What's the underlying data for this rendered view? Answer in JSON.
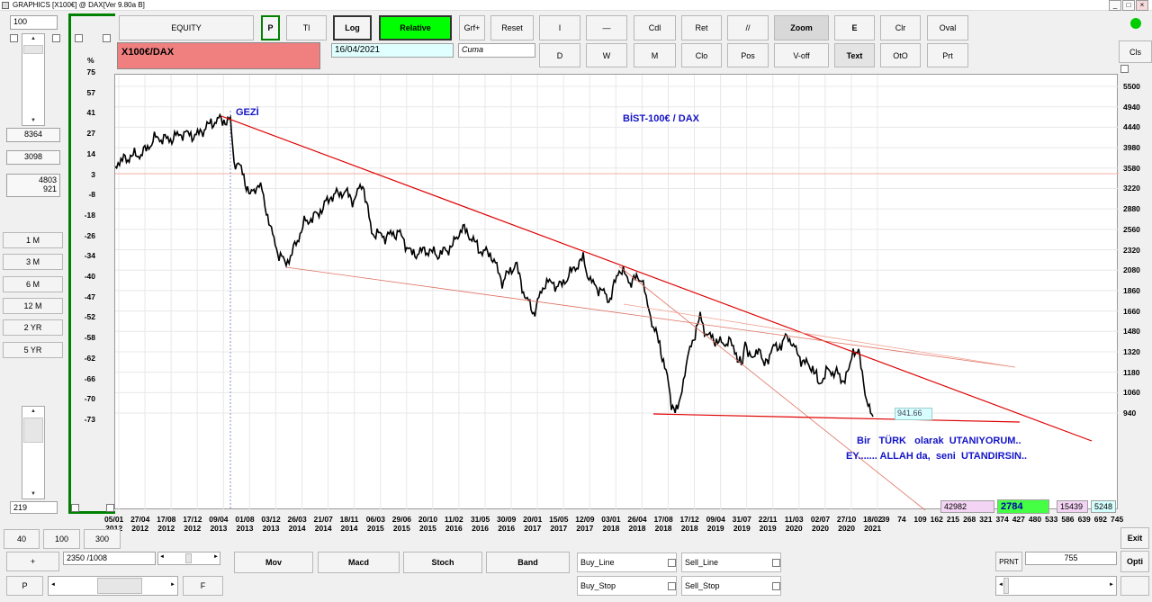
{
  "window": {
    "title": "GRAPHICS  [X100€] @ DAX[Ver 9.80a B]"
  },
  "left": {
    "top_value": "100",
    "value_8364": "8364",
    "value_3098": "3098",
    "value_4803": "4803",
    "value_921": "921",
    "period_buttons": [
      "1 M",
      "3 M",
      "6 M",
      "12 M",
      "2 YR",
      "5 YR"
    ],
    "bottom_value": "219",
    "percent_label": "%"
  },
  "toolbar": {
    "equity": "EQUITY",
    "p": "P",
    "tl": "Tl",
    "log": "Log",
    "relative": "Relative",
    "grf": "Grf+",
    "reset": "Reset",
    "i": "I",
    "dash": "—",
    "cdl": "Cdl",
    "ret": "Ret",
    "parallel": "//",
    "zoom": "Zoom",
    "e": "E",
    "clr": "Clr",
    "oval": "Oval",
    "cls": "Cls",
    "d": "D",
    "w": "W",
    "m": "M",
    "clo": "Clo",
    "pos": "Pos",
    "voff": "V-off",
    "text": "Text",
    "oto": "OtO",
    "prt": "Prt",
    "symbol": "X100€/DAX",
    "date": "16/04/2021",
    "day": "Cuma"
  },
  "chart": {
    "y_left_ticks": [
      "75",
      "57",
      "41",
      "27",
      "14",
      "3",
      "-8",
      "-18",
      "-26",
      "-34",
      "-40",
      "-47",
      "-52",
      "-58",
      "-62",
      "-66",
      "-70",
      "-73"
    ],
    "y_right_ticks": [
      "5500",
      "4940",
      "4440",
      "3980",
      "3580",
      "3220",
      "2880",
      "2560",
      "2320",
      "2080",
      "1860",
      "1660",
      "1480",
      "1320",
      "1180",
      "1060",
      "940"
    ],
    "x_ticks": [
      [
        "05/01",
        "2012"
      ],
      [
        "27/04",
        "2012"
      ],
      [
        "17/08",
        "2012"
      ],
      [
        "17/12",
        "2012"
      ],
      [
        "09/04",
        "2013"
      ],
      [
        "01/08",
        "2013"
      ],
      [
        "03/12",
        "2013"
      ],
      [
        "26/03",
        "2014"
      ],
      [
        "21/07",
        "2014"
      ],
      [
        "18/11",
        "2014"
      ],
      [
        "06/03",
        "2015"
      ],
      [
        "29/06",
        "2015"
      ],
      [
        "20/10",
        "2015"
      ],
      [
        "11/02",
        "2016"
      ],
      [
        "31/05",
        "2016"
      ],
      [
        "30/09",
        "2016"
      ],
      [
        "20/01",
        "2017"
      ],
      [
        "15/05",
        "2017"
      ],
      [
        "12/09",
        "2017"
      ],
      [
        "03/01",
        "2018"
      ],
      [
        "26/04",
        "2018"
      ],
      [
        "17/08",
        "2018"
      ],
      [
        "17/12",
        "2018"
      ],
      [
        "09/04",
        "2019"
      ],
      [
        "31/07",
        "2019"
      ],
      [
        "22/11",
        "2019"
      ],
      [
        "11/03",
        "2020"
      ],
      [
        "02/07",
        "2020"
      ],
      [
        "27/10",
        "2020"
      ],
      [
        "18/02",
        "2021"
      ]
    ],
    "x_counts": [
      "39",
      "74",
      "109",
      "162",
      "215",
      "268",
      "321",
      "374",
      "427",
      "480",
      "533",
      "586",
      "639",
      "692",
      "745"
    ],
    "label_gezi": "GEZİ",
    "label_title": "BİST-100€  /  DAX",
    "label_msg1": "Bir   TÜRK   olarak  UTANIYORUM..",
    "label_msg2": "EY....... ALLAH da,  seni  UTANDIRSIN..",
    "price_box": "941.66",
    "stat_42982": "42982",
    "stat_2784": "2784",
    "stat_15439": "15439",
    "stat_5248": "5248"
  },
  "bottom": {
    "b40": "40",
    "b100": "100",
    "b300": "300",
    "plus": "+",
    "range": "2350  /1008",
    "p": "P",
    "f": "F",
    "mov": "Mov",
    "macd": "Macd",
    "stoch": "Stoch",
    "band": "Band",
    "buy_line": "Buy_Line",
    "sell_line": "Sell_Line",
    "buy_stop": "Buy_Stop",
    "sell_stop": "Sell_Stop",
    "prnt": "PRNT",
    "v755": "755",
    "exit": "Exit",
    "opti": "Opti"
  },
  "colors": {
    "accent_green": "#00ff00",
    "symbol_bg": "#f08080",
    "trend_red": "#e00000",
    "label_blue": "#1414c8"
  }
}
